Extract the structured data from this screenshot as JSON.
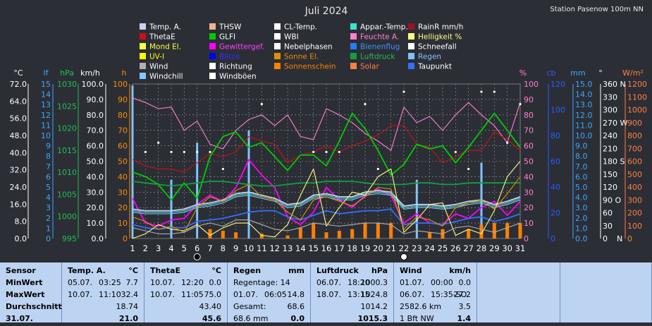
{
  "title": "Juli 2024",
  "station": "Station Pasenow 100m NN",
  "legend": [
    {
      "label": "Temp. A.",
      "color": "#c8d2f0",
      "text": "#ffffff"
    },
    {
      "label": "THSW",
      "color": "#f0b48c",
      "text": "#ffffff"
    },
    {
      "label": "CL-Temp.",
      "color": "#ffffff",
      "text": "#ffffff"
    },
    {
      "label": "Appar.-Temp.",
      "color": "#40e0d0",
      "text": "#ffffff"
    },
    {
      "label": "RainR mm/h",
      "color": "#a01020",
      "text": "#ffffff"
    },
    {
      "label": "ThetaE",
      "color": "#d01010",
      "text": "#ffffff"
    },
    {
      "label": "GLFI",
      "color": "#00cc00",
      "text": "#ffffff"
    },
    {
      "label": "WBI",
      "color": "#ffffff",
      "text": "#ffffff"
    },
    {
      "label": "Feuchte A.",
      "color": "#ff80d0",
      "text": "#ff80d0"
    },
    {
      "label": "Helligkeit %",
      "color": "#ffff80",
      "text": "#ffff80"
    },
    {
      "label": "Mond El.",
      "color": "#ffff40",
      "text": "#ffff40"
    },
    {
      "label": "Gewittergef.",
      "color": "#ff00ff",
      "text": "#ff40ff"
    },
    {
      "label": "Nebelphasen",
      "color": "#ffffff",
      "text": "#ffffff"
    },
    {
      "label": "Bienenflug",
      "color": "#2080ff",
      "text": "#4090ff"
    },
    {
      "label": "Schneefall",
      "color": "#ffffff",
      "text": "#ffffff"
    },
    {
      "label": "UV-I",
      "color": "#ffff00",
      "text": "#ffff00"
    },
    {
      "label": "Blitze",
      "color": "#0000ff",
      "text": "#3030ff"
    },
    {
      "label": "Sonne El.",
      "color": "#e09000",
      "text": "#e09000"
    },
    {
      "label": "Luftdruck",
      "color": "#10a040",
      "text": "#20c050"
    },
    {
      "label": "Regen",
      "color": "#80c0ff",
      "text": "#80c0ff"
    },
    {
      "label": "Wind",
      "color": "#b0b0b0",
      "text": "#ffffff"
    },
    {
      "label": "Richtung",
      "color": "#ffffff",
      "text": "#ffffff"
    },
    {
      "label": "Sonnenschein",
      "color": "#ff8000",
      "text": "#ff8000"
    },
    {
      "label": "Solar",
      "color": "#ff8040",
      "text": "#ff8040"
    },
    {
      "label": "Taupunkt",
      "color": "#3070ff",
      "text": "#ffffff"
    },
    {
      "label": "Windchill",
      "color": "#80c8ff",
      "text": "#ffffff"
    },
    {
      "label": "Windböen",
      "color": "#ffffff",
      "text": "#ffffff"
    }
  ],
  "axis_units": {
    "temp": "°C",
    "lf": "lf",
    "hpa": "hPa",
    "kmh": "km/h",
    "h": "h",
    "pct": "%",
    "cb": "cb",
    "mm": "mm",
    "deg": "°",
    "wm2": "W/m²"
  },
  "axis_ticks": {
    "temp": [
      "0.0",
      "8.0",
      "16.0",
      "24.0",
      "32.0",
      "40.0",
      "48.0",
      "56.0",
      "64.0",
      "72.0"
    ],
    "lf": [
      "0",
      "1",
      "2",
      "3",
      "4",
      "5",
      "6",
      "7",
      "8",
      "9",
      "10",
      "11",
      "12",
      "13",
      "14",
      "15"
    ],
    "hpa": [
      "995",
      "1000",
      "1005",
      "1010",
      "1015",
      "1020",
      "1025",
      "1030"
    ],
    "kmh": [
      "0.0",
      "10.0",
      "20.0",
      "30.0",
      "40.0",
      "50.0",
      "60.0",
      "70.0",
      "80.0",
      "90.0",
      "100.0"
    ],
    "h": [
      "0",
      "10",
      "20",
      "30",
      "40",
      "50",
      "60",
      "70",
      "80",
      "90",
      "100"
    ],
    "pct": [
      "0",
      "10",
      "20",
      "30",
      "40",
      "50",
      "60",
      "70",
      "80",
      "90",
      "100"
    ],
    "cb": [
      "0",
      "20",
      "40",
      "60",
      "80",
      "100",
      "120"
    ],
    "mm": [
      "0.0",
      "1.0",
      "2.0",
      "3.0",
      "4.0",
      "5.0",
      "6.0",
      "7.0",
      "8.0",
      "9.0",
      "10.0",
      "11.0",
      "12.0",
      "13.0",
      "14.0",
      "15.0"
    ],
    "deg": [
      "0",
      "30",
      "60",
      "90 O",
      "120",
      "150",
      "180 S",
      "210",
      "240",
      "270 W",
      "300",
      "330",
      "360 N"
    ],
    "wm2": [
      "0",
      "100",
      "200",
      "300",
      "400",
      "500",
      "600",
      "700",
      "800",
      "900",
      "1000",
      "1100",
      "1200"
    ]
  },
  "deg_bottom_label": "N",
  "chart_data": {
    "type": "line",
    "x": [
      1,
      2,
      3,
      4,
      5,
      6,
      7,
      8,
      9,
      10,
      11,
      12,
      13,
      14,
      15,
      16,
      17,
      18,
      19,
      20,
      21,
      22,
      23,
      24,
      25,
      26,
      27,
      28,
      29,
      30,
      31
    ],
    "ylim_left_pct": [
      0,
      100
    ],
    "series": [
      {
        "name": "Feuchte A.",
        "color": "#ff80d0",
        "values": [
          91,
          88,
          84,
          85,
          70,
          76,
          61,
          58,
          70,
          77,
          80,
          73,
          80,
          66,
          64,
          84,
          80,
          75,
          68,
          63,
          57,
          85,
          75,
          79,
          70,
          80,
          88,
          80,
          73,
          62,
          88
        ]
      },
      {
        "name": "ThetaE",
        "color": "#d01010",
        "values": [
          51,
          47,
          45,
          45,
          43,
          49,
          55,
          53,
          56,
          66,
          63,
          61,
          49,
          54,
          56,
          60,
          56,
          60,
          63,
          67,
          73,
          73,
          61,
          59,
          49,
          53,
          57,
          57,
          69,
          64,
          57
        ]
      },
      {
        "name": "GLFI",
        "color": "#00cc00",
        "values": [
          43,
          40,
          35,
          25,
          36,
          26,
          53,
          66,
          69,
          59,
          62,
          53,
          44,
          54,
          54,
          47,
          63,
          81,
          71,
          57,
          41,
          48,
          61,
          58,
          60,
          49,
          59,
          70,
          81,
          70,
          59
        ]
      },
      {
        "name": "Gewittergef.",
        "color": "#ff00ff",
        "values": [
          26,
          10,
          8,
          12,
          13,
          22,
          28,
          24,
          33,
          51,
          41,
          33,
          14,
          9,
          17,
          33,
          25,
          20,
          28,
          32,
          28,
          10,
          16,
          10,
          9,
          16,
          13,
          20,
          24,
          15,
          24
        ]
      },
      {
        "name": "Luftdruck",
        "color": "#10a040",
        "values": [
          37,
          36,
          35,
          34,
          35,
          36,
          37,
          37,
          36,
          35,
          34,
          34,
          35,
          36,
          36,
          37,
          37,
          37,
          36,
          35,
          35,
          35,
          36,
          36,
          35,
          35,
          36,
          36,
          36,
          36,
          36
        ]
      },
      {
        "name": "Temp. A.",
        "color": "#c8d2f0",
        "values": [
          19,
          18,
          18,
          18,
          19,
          22,
          23,
          25,
          29,
          30,
          28,
          26,
          22,
          23,
          28,
          29,
          27,
          27,
          30,
          31,
          30,
          21,
          22,
          22,
          21,
          22,
          24,
          25,
          22,
          24,
          27
        ]
      },
      {
        "name": "Appar.-Temp.",
        "color": "#40e0d0",
        "values": [
          18,
          17,
          17,
          17,
          18,
          21,
          22,
          24,
          28,
          29,
          27,
          25,
          21,
          22,
          27,
          28,
          26,
          26,
          29,
          30,
          29,
          20,
          21,
          21,
          20,
          21,
          23,
          24,
          21,
          23,
          26
        ]
      },
      {
        "name": "Taupunkt",
        "color": "#3070ff",
        "values": [
          9,
          7,
          6,
          7,
          7,
          11,
          12,
          13,
          15,
          17,
          18,
          18,
          14,
          12,
          15,
          18,
          16,
          17,
          18,
          18,
          19,
          9,
          10,
          10,
          9,
          11,
          13,
          14,
          11,
          13,
          16
        ]
      },
      {
        "name": "Windchill",
        "color": "#80c8ff",
        "values": [
          17,
          16,
          16,
          16,
          17,
          20,
          21,
          23,
          27,
          28,
          26,
          24,
          20,
          21,
          26,
          27,
          25,
          25,
          28,
          29,
          28,
          19,
          20,
          20,
          19,
          20,
          22,
          23,
          20,
          22,
          25
        ]
      },
      {
        "name": "Helligkeit %",
        "color": "#ffff80",
        "values": [
          0,
          3,
          9,
          6,
          5,
          9,
          2,
          7,
          10,
          10,
          2,
          1,
          9,
          28,
          45,
          8,
          20,
          30,
          28,
          40,
          45,
          4,
          12,
          22,
          23,
          2,
          6,
          3,
          18,
          40,
          50
        ]
      },
      {
        "name": "Sonne El.",
        "color": "#e09000",
        "values": [
          14,
          11,
          6,
          8,
          4,
          20,
          27,
          24,
          31,
          35,
          27,
          25,
          17,
          12,
          25,
          27,
          24,
          21,
          27,
          33,
          32,
          6,
          14,
          12,
          8,
          20,
          23,
          25,
          19,
          29,
          40
        ]
      },
      {
        "name": "Wind",
        "color": "#b0b0b0",
        "values": [
          7,
          5,
          3,
          3,
          4,
          8,
          10,
          8,
          12,
          12,
          9,
          6,
          5,
          7,
          10,
          9,
          8,
          9,
          10,
          10,
          9,
          3,
          5,
          4,
          3,
          7,
          8,
          6,
          4,
          7,
          10
        ]
      }
    ],
    "rain_bars": [
      99,
      0,
      0,
      38,
      0,
      62,
      0,
      0,
      0,
      70,
      0,
      0,
      0,
      0,
      0,
      0,
      0,
      0,
      0,
      0,
      0,
      0,
      38,
      0,
      0,
      0,
      0,
      49,
      0,
      0,
      0
    ],
    "sunshine_bars": [
      0,
      0,
      0,
      0,
      0,
      0,
      6,
      5,
      4,
      0,
      3,
      0,
      2,
      7,
      10,
      4,
      5,
      6,
      10,
      10,
      10,
      0,
      0,
      4,
      6,
      0,
      6,
      9,
      10,
      10,
      10
    ],
    "direction_points": [
      0,
      56,
      62,
      56,
      56,
      56,
      56,
      45,
      0,
      0,
      87,
      0,
      0,
      0,
      56,
      56,
      56,
      0,
      87,
      45,
      0,
      95,
      0,
      0,
      0,
      56,
      45,
      95,
      95,
      62,
      87
    ],
    "moon_phase_markers": [
      {
        "day": 6,
        "phase": "new"
      },
      {
        "day": 22,
        "phase": "full"
      }
    ]
  },
  "table": {
    "columns": [
      {
        "header": {
          "name": "Sensor"
        },
        "rows": [
          {
            "label": "MinWert"
          },
          {
            "label": "MaxWert"
          },
          {
            "label": "Durchschnitt"
          },
          {
            "label": "31.07."
          }
        ]
      },
      {
        "header": {
          "name": "Temp. A.",
          "unit": "°C"
        },
        "rows": [
          {
            "a": "05.07.",
            "b": "03:25",
            "v": "7.7"
          },
          {
            "a": "10.07.",
            "b": "11:10",
            "v": "32.4"
          },
          {
            "a": "",
            "b": "",
            "v": "18.74"
          },
          {
            "a": "",
            "b": "",
            "v": "21.0"
          }
        ]
      },
      {
        "header": {
          "name": "ThetaE",
          "unit": "°C"
        },
        "rows": [
          {
            "a": "10.07.",
            "b": "12:20",
            "v": "0.0"
          },
          {
            "a": "10.07.",
            "b": "11:05",
            "v": "75.0"
          },
          {
            "a": "",
            "b": "",
            "v": "43.40"
          },
          {
            "a": "",
            "b": "",
            "v": "45.6"
          }
        ]
      },
      {
        "header": {
          "name": "Regen",
          "unit": "mm"
        },
        "rows": [
          {
            "a": "Regentage: 14",
            "b": "",
            "v": ""
          },
          {
            "a": "01.07.",
            "b": "06:05",
            "v": "14.8"
          },
          {
            "a": "Gesamt:",
            "b": "",
            "v": "68.6"
          },
          {
            "a": "68.6 mm",
            "b": "",
            "v": "0.0"
          }
        ]
      },
      {
        "header": {
          "name": "Luftdruck",
          "unit": "hPa"
        },
        "rows": [
          {
            "a": "06.07.",
            "b": "18:20",
            "v": "1000.3"
          },
          {
            "a": "18.07.",
            "b": "13:15",
            "v": "1024.8"
          },
          {
            "a": "",
            "b": "",
            "v": "1014.2"
          },
          {
            "a": "",
            "b": "",
            "v": "1015.3"
          }
        ]
      },
      {
        "header": {
          "name": "Wind",
          "unit": "km/h"
        },
        "rows": [
          {
            "a": "01.07.",
            "b": "00:00",
            "v": "0.0"
          },
          {
            "a": "06.07.",
            "b": "15:35-SO",
            "v": "27.2"
          },
          {
            "a": "2582.6 km",
            "b": "",
            "v": "3.5"
          },
          {
            "a": "1 Bft NW",
            "b": "",
            "v": "1.4"
          }
        ]
      }
    ]
  }
}
